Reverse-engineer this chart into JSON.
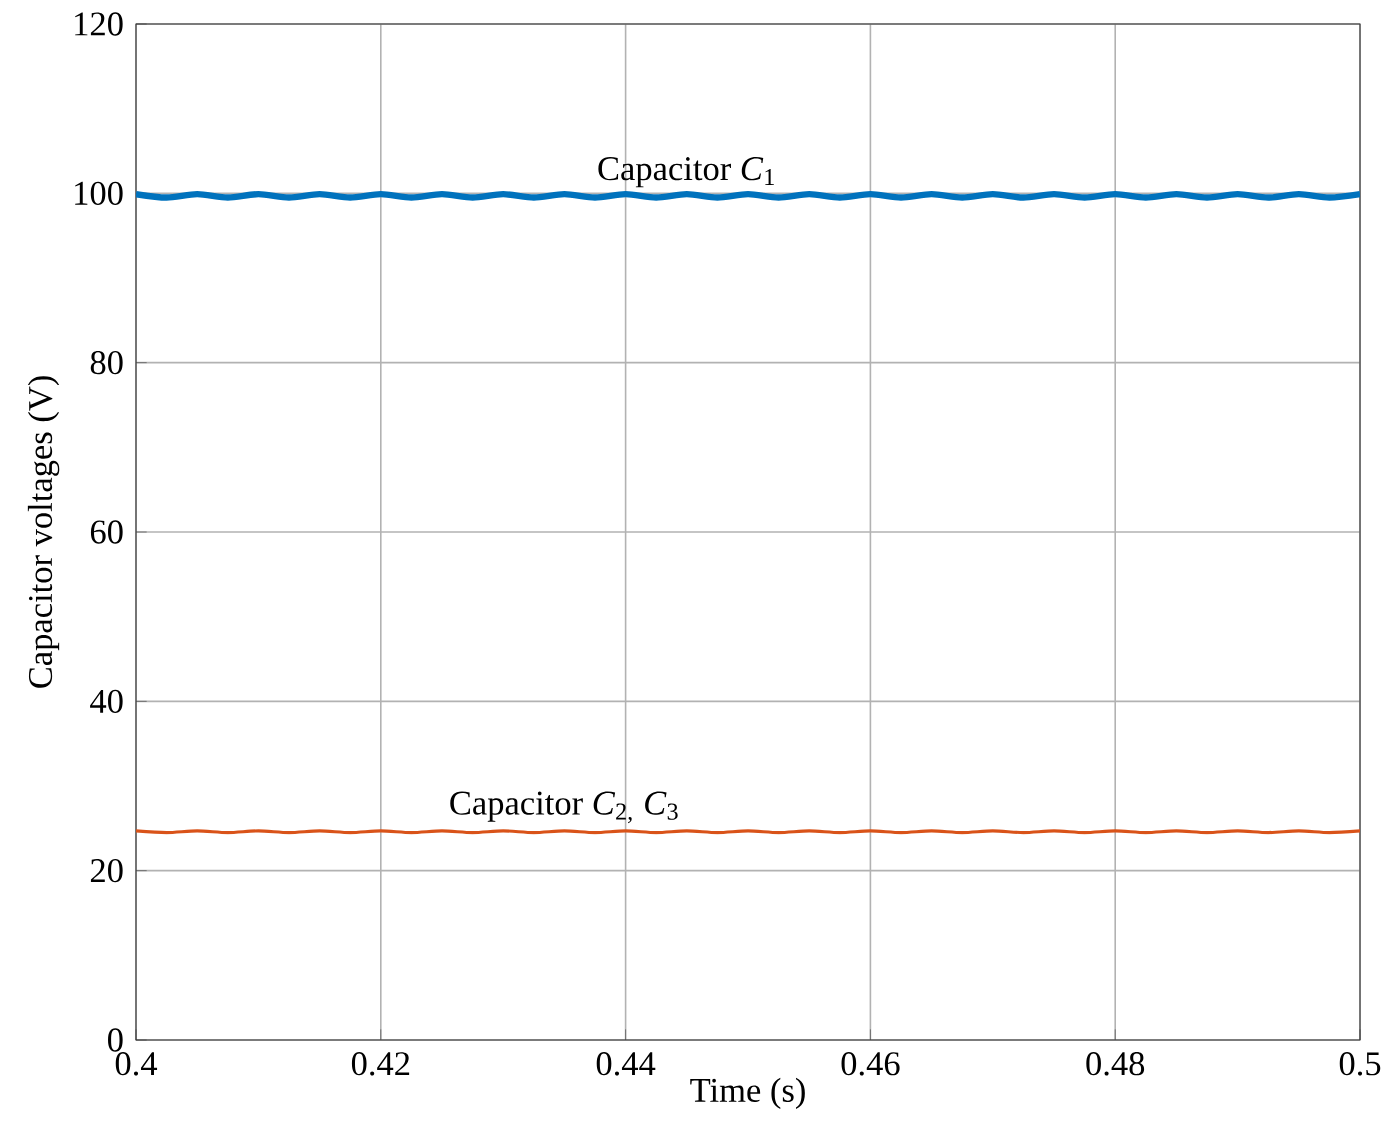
{
  "chart_data": {
    "type": "line",
    "xlabel": "Time (s)",
    "ylabel": "Capacitor voltages (V)",
    "xlim": [
      0.4,
      0.5
    ],
    "xticks": [
      0.4,
      0.42,
      0.44,
      0.46,
      0.48,
      0.5
    ],
    "ylim": [
      0,
      120
    ],
    "yticks": [
      0,
      20,
      40,
      60,
      80,
      100,
      120
    ],
    "grid": true,
    "line_style": "solid",
    "marker": "none",
    "x": [
      0.4,
      0.4025,
      0.405,
      0.4075,
      0.41,
      0.4125,
      0.415,
      0.4175,
      0.42,
      0.4225,
      0.425,
      0.4275,
      0.43,
      0.4325,
      0.435,
      0.4375,
      0.44,
      0.4425,
      0.445,
      0.4475,
      0.45,
      0.4525,
      0.455,
      0.4575,
      0.46,
      0.4625,
      0.465,
      0.4675,
      0.47,
      0.4725,
      0.475,
      0.4775,
      0.48,
      0.4825,
      0.485,
      0.4875,
      0.49,
      0.4925,
      0.495,
      0.4975,
      0.5
    ],
    "series": [
      {
        "color": "#0072bd",
        "values": [
          99.9,
          99.5,
          99.9,
          99.5,
          99.9,
          99.5,
          99.9,
          99.5,
          99.9,
          99.5,
          99.9,
          99.5,
          99.9,
          99.5,
          99.9,
          99.5,
          99.9,
          99.5,
          99.9,
          99.5,
          99.9,
          99.5,
          99.9,
          99.5,
          99.9,
          99.5,
          99.9,
          99.5,
          99.9,
          99.5,
          99.9,
          99.5,
          99.9,
          99.5,
          99.9,
          99.5,
          99.9,
          99.5,
          99.9,
          99.5,
          99.9
        ]
      },
      {
        "color": "#d95319",
        "values": [
          24.7,
          24.5,
          24.7,
          24.5,
          24.7,
          24.5,
          24.7,
          24.5,
          24.7,
          24.5,
          24.7,
          24.5,
          24.7,
          24.5,
          24.7,
          24.5,
          24.7,
          24.5,
          24.7,
          24.5,
          24.7,
          24.5,
          24.7,
          24.5,
          24.7,
          24.5,
          24.7,
          24.5,
          24.7,
          24.5,
          24.7,
          24.5,
          24.7,
          24.5,
          24.7,
          24.5,
          24.7,
          24.5,
          24.7,
          24.5,
          24.7
        ]
      }
    ],
    "annotations": [
      {
        "text": "Capacitor *C*$_{1}$",
        "x": 0.445,
        "y": 99.7
      },
      {
        "text": "Capacitor *C*$_{2,}$ *C*$_{3}$",
        "x": 0.435,
        "y": 24.6
      }
    ]
  }
}
